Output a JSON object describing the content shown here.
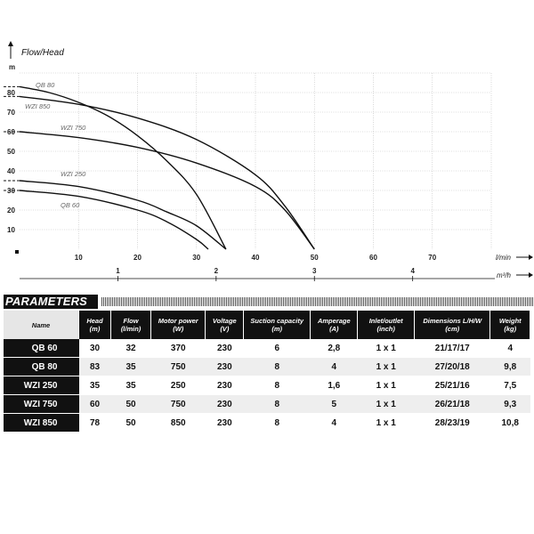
{
  "chart_data": {
    "type": "line",
    "title": "Flow/Head",
    "y_unit": "m",
    "x_unit": "l/min",
    "x2_unit": "m³/h",
    "xlim": [
      0,
      80
    ],
    "ylim": [
      0,
      90
    ],
    "x_ticks": [
      10,
      20,
      30,
      40,
      50,
      60,
      70
    ],
    "y_ticks": [
      10,
      20,
      30,
      40,
      50,
      60,
      70,
      80
    ],
    "x2_ticks": [
      {
        "label": "1",
        "value": 16.667
      },
      {
        "label": "2",
        "value": 33.333
      },
      {
        "label": "3",
        "value": 50
      },
      {
        "label": "4",
        "value": 66.667
      }
    ],
    "grid": true,
    "series": [
      {
        "name": "QB 80",
        "points": [
          [
            0,
            83
          ],
          [
            5,
            80
          ],
          [
            10,
            75
          ],
          [
            15,
            68
          ],
          [
            20,
            58
          ],
          [
            25,
            45
          ],
          [
            30,
            28
          ],
          [
            35,
            0
          ]
        ]
      },
      {
        "name": "WZI 850",
        "points": [
          [
            0,
            78
          ],
          [
            10,
            74
          ],
          [
            20,
            67
          ],
          [
            30,
            56
          ],
          [
            40,
            38
          ],
          [
            45,
            22
          ],
          [
            50,
            0
          ]
        ]
      },
      {
        "name": "WZI 750",
        "points": [
          [
            0,
            60
          ],
          [
            10,
            57
          ],
          [
            20,
            52
          ],
          [
            30,
            44
          ],
          [
            40,
            32
          ],
          [
            45,
            20
          ],
          [
            50,
            0
          ]
        ]
      },
      {
        "name": "WZI 250",
        "points": [
          [
            0,
            35
          ],
          [
            10,
            32
          ],
          [
            20,
            25
          ],
          [
            25,
            19
          ],
          [
            30,
            12
          ],
          [
            35,
            0
          ]
        ]
      },
      {
        "name": "QB 60",
        "points": [
          [
            0,
            30
          ],
          [
            10,
            27
          ],
          [
            20,
            20
          ],
          [
            25,
            14
          ],
          [
            30,
            5
          ],
          [
            32,
            0
          ]
        ]
      }
    ]
  },
  "parameters": {
    "title": "PARAMETERS",
    "columns": [
      "Name",
      "Head (m)",
      "Flow (l/min)",
      "Motor power (W)",
      "Voltage (V)",
      "Suction capacity (m)",
      "Amperage (A)",
      "Inlet/outlet (inch)",
      "Dimensions L/H/W (cm)",
      "Weight (kg)"
    ],
    "rows": [
      [
        "QB 60",
        "30",
        "32",
        "370",
        "230",
        "6",
        "2,8",
        "1 x 1",
        "21/17/17",
        "4"
      ],
      [
        "QB 80",
        "83",
        "35",
        "750",
        "230",
        "8",
        "4",
        "1 x 1",
        "27/20/18",
        "9,8"
      ],
      [
        "WZI 250",
        "35",
        "35",
        "250",
        "230",
        "8",
        "1,6",
        "1 x 1",
        "25/21/16",
        "7,5"
      ],
      [
        "WZI 750",
        "60",
        "50",
        "750",
        "230",
        "8",
        "5",
        "1 x 1",
        "26/21/18",
        "9,3"
      ],
      [
        "WZI 850",
        "78",
        "50",
        "850",
        "230",
        "8",
        "4",
        "1 x 1",
        "28/23/19",
        "10,8"
      ]
    ]
  }
}
